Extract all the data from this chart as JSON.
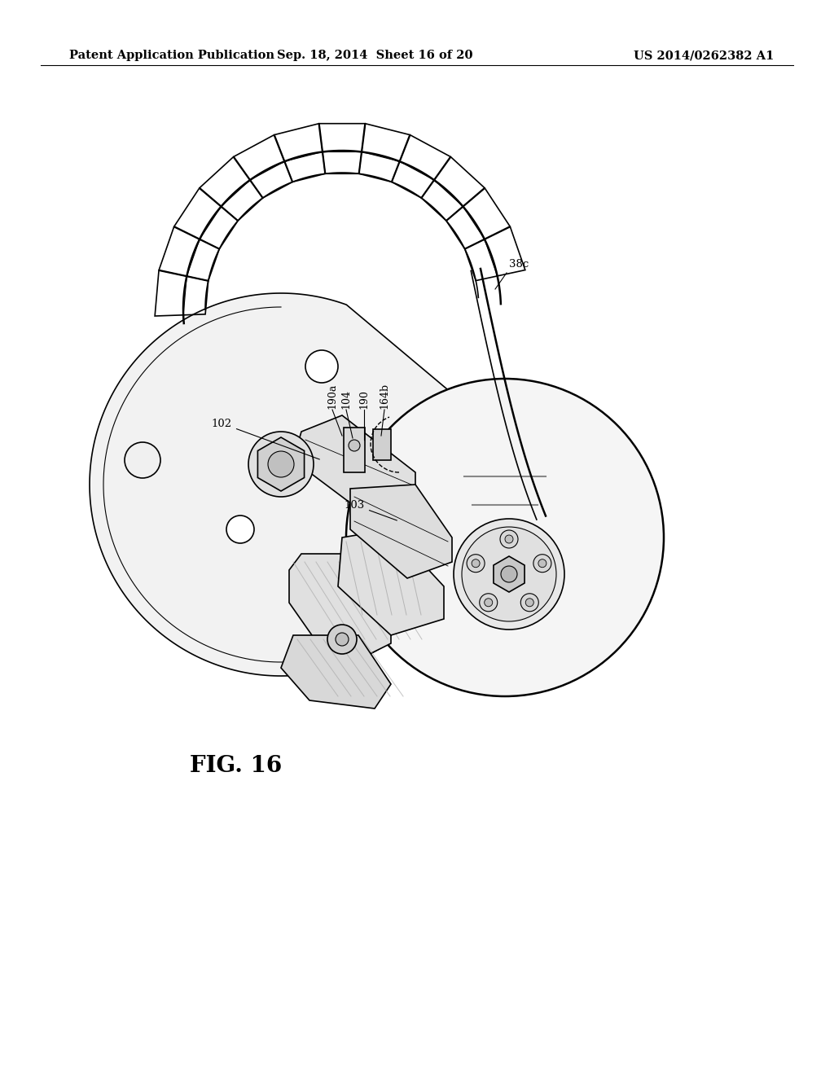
{
  "background_color": "#ffffff",
  "header_left": "Patent Application Publication",
  "header_center": "Sep. 18, 2014  Sheet 16 of 20",
  "header_right": "US 2014/0262382 A1",
  "figure_label": "FIG. 16",
  "header_fontsize": 10.5,
  "figure_label_fontsize": 20,
  "label_fontsize": 9.5,
  "line_color": "#000000",
  "light_gray": "#e8e8e8",
  "mid_gray": "#c0c0c0",
  "dark_gray": "#888888",
  "hatch_gray": "#aaaaaa"
}
